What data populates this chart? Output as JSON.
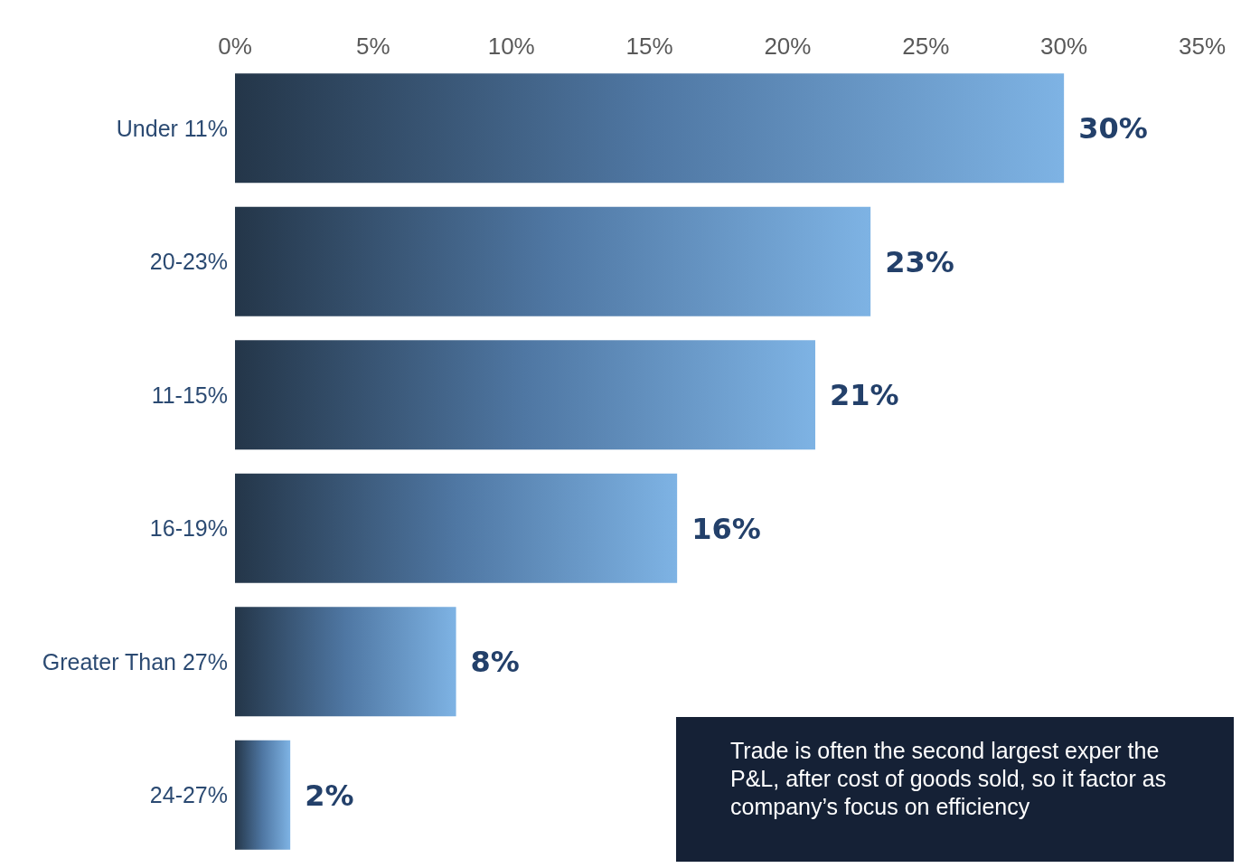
{
  "chart_data": {
    "type": "bar",
    "orientation": "horizontal",
    "categories": [
      "Under 11%",
      "20-23%",
      "11-15%",
      "16-19%",
      "Greater Than 27%",
      "24-27%"
    ],
    "values": [
      30,
      23,
      21,
      16,
      8,
      2
    ],
    "value_labels": [
      "30%",
      "23%",
      "21%",
      "16%",
      "8%",
      "2%"
    ],
    "color": "#4f77a3",
    "xlim": [
      0,
      35
    ],
    "xticks": [
      {
        "value": 0,
        "label": "0%"
      },
      {
        "value": 5,
        "label": "5%"
      },
      {
        "value": 10,
        "label": "10%"
      },
      {
        "value": 15,
        "label": "15%"
      },
      {
        "value": 20,
        "label": "20%"
      },
      {
        "value": 25,
        "label": "25%"
      },
      {
        "value": 30,
        "label": "30%"
      },
      {
        "value": 35,
        "label": "35%"
      }
    ],
    "grid": false,
    "legend": false,
    "annotations": [
      "Trade is often the second largest exper the P&L, after cost of goods sold, so it factor as company’s focus on efficiency"
    ]
  }
}
